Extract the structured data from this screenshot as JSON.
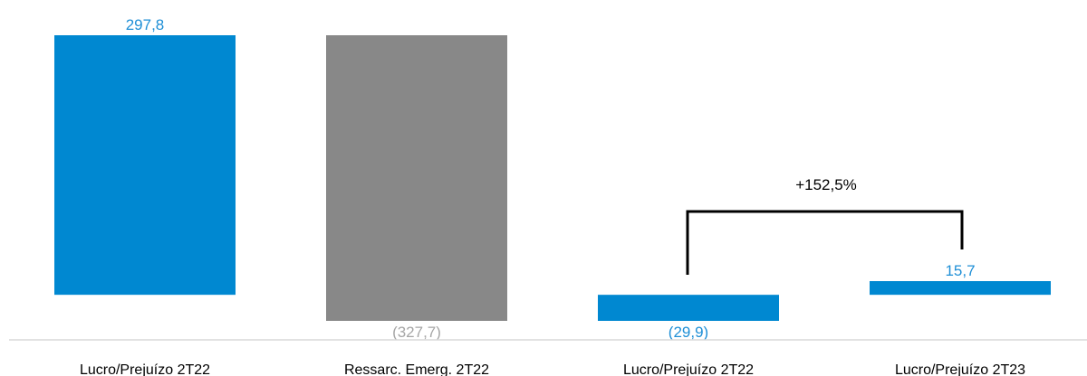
{
  "chart_data": {
    "type": "bar",
    "subtype": "waterfall",
    "categories": [
      "Lucro/Prejuízo 2T22",
      "Ressarc. Emerg. 2T22",
      "Lucro/Prejuízo 2T22",
      "Lucro/Prejuízo 2T23"
    ],
    "bars": [
      {
        "start": 0,
        "end": 297.8,
        "label": "297,8",
        "color": "#0088d1",
        "label_color": "#1f8fd6"
      },
      {
        "start": 297.8,
        "end": -29.9,
        "label": "(327,7)",
        "color": "#888888",
        "label_color": "#a6a6a6"
      },
      {
        "start": 0,
        "end": -29.9,
        "label": "(29,9)",
        "color": "#0088d1",
        "label_color": "#1f8fd6"
      },
      {
        "start": 0,
        "end": 15.7,
        "label": "15,7",
        "color": "#0088d1",
        "label_color": "#1f8fd6"
      }
    ],
    "annotation": {
      "text": "+152,5%",
      "from_category": 2,
      "to_category": 3
    },
    "ylim": [
      -29.9,
      297.8
    ],
    "grid": false,
    "legend": "none"
  }
}
